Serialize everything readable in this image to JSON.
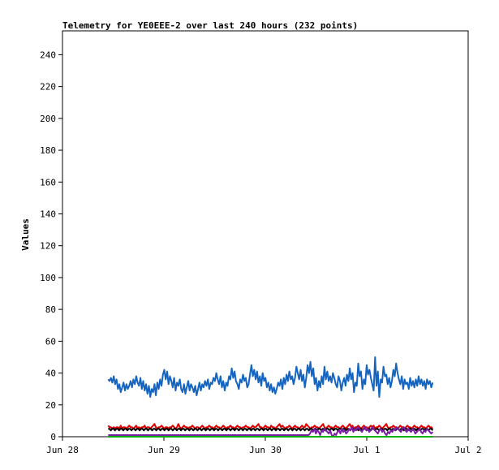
{
  "chart_data": {
    "type": "line",
    "title": "Telemetry for YE0EEE-2 over last 240 hours (232 points)",
    "xlabel": "",
    "ylabel": "Values",
    "ylim": [
      0,
      255
    ],
    "yticks": [
      0,
      20,
      40,
      60,
      80,
      100,
      120,
      140,
      160,
      180,
      200,
      220,
      240
    ],
    "xlim": [
      0,
      4
    ],
    "xticks": [
      {
        "x": 0,
        "label": "Jun 28"
      },
      {
        "x": 1,
        "label": "Jun 29"
      },
      {
        "x": 2,
        "label": "Jun 30"
      },
      {
        "x": 3,
        "label": "Jul 1"
      },
      {
        "x": 4,
        "label": "Jul 2"
      }
    ],
    "x_start": 0.45,
    "x_end": 3.65,
    "grid": false,
    "legend": "none",
    "series": [
      {
        "color": "#1565c0",
        "values": [
          36,
          35,
          37,
          34,
          38,
          33,
          36,
          30,
          33,
          28,
          31,
          34,
          29,
          33,
          30,
          32,
          35,
          31,
          36,
          33,
          38,
          34,
          32,
          37,
          30,
          35,
          29,
          33,
          27,
          32,
          25,
          30,
          28,
          33,
          26,
          34,
          30,
          36,
          32,
          39,
          42,
          36,
          41,
          33,
          38,
          35,
          31,
          37,
          29,
          34,
          32,
          36,
          30,
          28,
          33,
          27,
          31,
          35,
          29,
          33,
          31,
          28,
          32,
          26,
          30,
          34,
          29,
          33,
          31,
          35,
          32,
          36,
          30,
          34,
          33,
          37,
          35,
          40,
          36,
          33,
          38,
          31,
          35,
          29,
          34,
          32,
          38,
          36,
          43,
          37,
          41,
          35,
          33,
          30,
          36,
          34,
          39,
          35,
          37,
          31,
          33,
          39,
          45,
          38,
          42,
          36,
          41,
          34,
          38,
          32,
          40,
          35,
          37,
          31,
          34,
          29,
          33,
          28,
          31,
          27,
          30,
          34,
          32,
          36,
          30,
          37,
          33,
          39,
          35,
          41,
          36,
          38,
          33,
          37,
          44,
          40,
          36,
          42,
          35,
          39,
          31,
          37,
          45,
          40,
          47,
          38,
          43,
          33,
          37,
          29,
          35,
          31,
          38,
          33,
          44,
          36,
          41,
          35,
          38,
          34,
          40,
          37,
          33,
          31,
          38,
          35,
          29,
          34,
          37,
          32,
          39,
          35,
          43,
          36,
          40,
          28,
          34,
          32,
          46,
          38,
          41,
          30,
          36,
          33,
          45,
          39,
          42,
          37,
          33,
          29,
          50,
          32,
          41,
          25,
          36,
          34,
          44,
          38,
          39,
          33,
          37,
          31,
          35,
          42,
          38,
          46,
          40,
          36,
          33,
          38,
          30,
          36,
          33,
          34,
          30,
          37,
          32,
          35,
          31,
          36,
          32,
          38,
          33,
          36,
          32,
          35,
          30,
          36,
          33,
          35,
          31,
          34
        ]
      },
      {
        "color": "#e00000",
        "values": [
          7,
          6,
          6,
          5,
          6,
          5,
          6,
          6,
          5,
          7,
          5,
          6,
          6,
          5,
          6,
          7,
          6,
          6,
          5,
          6,
          7,
          5,
          6,
          5,
          6,
          6,
          7,
          5,
          6,
          6,
          5,
          6,
          7,
          8,
          6,
          5,
          6,
          6,
          7,
          6,
          5,
          6,
          6,
          5,
          6,
          6,
          7,
          6,
          5,
          6,
          8,
          6,
          5,
          6,
          7,
          6,
          6,
          5,
          6,
          6,
          7,
          6,
          5,
          6,
          6,
          5,
          6,
          7,
          6,
          5,
          6,
          6,
          7,
          6,
          6,
          5,
          6,
          7,
          6,
          6,
          5,
          6,
          7,
          6,
          5,
          6,
          6,
          7,
          6,
          6,
          5,
          6,
          7,
          6,
          6,
          5,
          6,
          6,
          7,
          6,
          6,
          5,
          6,
          7,
          6,
          6,
          7,
          8,
          6,
          6,
          5,
          6,
          7,
          6,
          6,
          5,
          7,
          6,
          6,
          5,
          6,
          7,
          8,
          6,
          7,
          6,
          5,
          6,
          6,
          7,
          6,
          5,
          6,
          7,
          6,
          6,
          5,
          6,
          7,
          6,
          6,
          8,
          7,
          6,
          5,
          6,
          6,
          7,
          6,
          6,
          5,
          6,
          7,
          8,
          6,
          5,
          6,
          7,
          6,
          6,
          5,
          6,
          7,
          6,
          6,
          5,
          6,
          7,
          6,
          5,
          6,
          7,
          8,
          6,
          7,
          5,
          6,
          6,
          7,
          6,
          5,
          6,
          7,
          6,
          6,
          5,
          6,
          7,
          6,
          7,
          5,
          6,
          6,
          7,
          6,
          5,
          6,
          7,
          8,
          6,
          5,
          6,
          6,
          7,
          6,
          6,
          5,
          6,
          7,
          6,
          6,
          5,
          6,
          7,
          6,
          6,
          5,
          6,
          7,
          6,
          6,
          5,
          6,
          7,
          6,
          6,
          5,
          6,
          7,
          6,
          6,
          5
        ]
      },
      {
        "color": "#000000",
        "values": [
          5,
          5,
          4,
          5,
          5,
          4,
          5,
          5,
          4,
          5,
          5,
          4,
          5,
          5,
          4,
          5,
          5,
          4,
          5,
          5,
          4,
          5,
          5,
          4,
          5,
          5,
          4,
          5,
          5,
          4,
          5,
          5,
          4,
          5,
          5,
          4,
          5,
          5,
          4,
          5,
          5,
          4,
          5,
          5,
          4,
          5,
          5,
          4,
          5,
          5,
          4,
          5,
          5,
          4,
          5,
          5,
          4,
          5,
          5,
          4,
          5,
          5,
          4,
          5,
          5,
          4,
          5,
          5,
          4,
          5,
          5,
          4,
          5,
          5,
          4,
          5,
          5,
          4,
          5,
          5,
          4,
          5,
          5,
          4,
          5,
          5,
          4,
          5,
          5,
          4,
          5,
          5,
          4,
          5,
          5,
          4,
          5,
          5,
          4,
          5,
          5,
          4,
          5,
          5,
          4,
          5,
          5,
          4,
          5,
          5,
          4,
          5,
          5,
          4,
          5,
          5,
          4,
          5,
          5,
          4,
          5,
          5,
          4,
          5,
          5,
          4,
          5,
          5,
          4,
          5,
          5,
          4,
          5,
          5,
          4,
          5,
          5,
          4,
          5,
          5,
          4,
          5,
          5,
          4,
          5,
          5,
          4,
          5,
          5,
          4,
          5,
          5,
          4,
          5,
          5,
          4,
          5,
          5,
          4,
          5,
          5,
          4,
          5,
          5,
          4,
          5,
          5,
          4,
          5,
          5,
          4,
          5,
          5,
          4,
          5,
          5,
          4,
          5,
          5,
          4,
          5,
          5,
          4,
          5,
          5,
          4,
          5,
          5,
          4,
          5,
          5,
          4,
          5,
          5,
          4,
          5,
          5,
          4,
          5,
          5,
          4,
          5,
          5,
          4,
          5,
          5,
          4,
          5,
          5,
          4,
          5,
          5,
          4,
          5,
          5,
          4,
          5,
          5,
          4,
          5,
          5,
          4,
          5,
          5,
          4,
          5,
          5,
          4,
          5,
          5,
          4,
          5,
          5,
          4,
          5,
          5,
          4
        ]
      },
      {
        "color": "#7b1fa2",
        "values": [
          1,
          1,
          1,
          1,
          1,
          1,
          1,
          1,
          1,
          1,
          1,
          1,
          1,
          1,
          1,
          1,
          1,
          1,
          1,
          1,
          1,
          1,
          1,
          1,
          1,
          1,
          1,
          1,
          1,
          1,
          1,
          1,
          1,
          1,
          1,
          1,
          1,
          1,
          1,
          1,
          1,
          1,
          1,
          1,
          1,
          1,
          1,
          1,
          1,
          1,
          1,
          1,
          1,
          1,
          1,
          1,
          1,
          1,
          1,
          1,
          1,
          1,
          1,
          1,
          1,
          1,
          1,
          1,
          1,
          1,
          1,
          1,
          1,
          1,
          1,
          1,
          1,
          1,
          1,
          1,
          1,
          1,
          1,
          1,
          1,
          1,
          1,
          1,
          1,
          1,
          1,
          1,
          1,
          1,
          1,
          1,
          1,
          1,
          1,
          1,
          1,
          1,
          1,
          1,
          1,
          1,
          1,
          1,
          1,
          1,
          1,
          1,
          1,
          1,
          1,
          1,
          1,
          1,
          1,
          1,
          1,
          1,
          1,
          1,
          1,
          1,
          1,
          1,
          1,
          1,
          1,
          1,
          1,
          1,
          1,
          1,
          1,
          1,
          1,
          1,
          2,
          4,
          3,
          5,
          2,
          4,
          3,
          1,
          4,
          3,
          5,
          4,
          3,
          2,
          4,
          1,
          0,
          2,
          1,
          3,
          4,
          2,
          5,
          3,
          4,
          2,
          3,
          5,
          4,
          6,
          3,
          5,
          4,
          6,
          5,
          4,
          3,
          5,
          6,
          4,
          5,
          3,
          4,
          6,
          5,
          4,
          3,
          2,
          4,
          5,
          3,
          4,
          2,
          1,
          3,
          2,
          4,
          3,
          5,
          4,
          6,
          5,
          4,
          3,
          5,
          6,
          4,
          3,
          5,
          4,
          3,
          5,
          4,
          2,
          3,
          4,
          5,
          3,
          2,
          4,
          3,
          5,
          4,
          3,
          2,
          3
        ]
      },
      {
        "color": "#00b000",
        "values": [
          0,
          0,
          0,
          0,
          0,
          0,
          0,
          0,
          0,
          0,
          0,
          0,
          0,
          0,
          0,
          0,
          0,
          0,
          0,
          0,
          0,
          0,
          0,
          0,
          0,
          0,
          0,
          0,
          0,
          0,
          0,
          0,
          0,
          0,
          0,
          0,
          0,
          0,
          0,
          0,
          0,
          0,
          0,
          0,
          0,
          0,
          0,
          0,
          0,
          0,
          0,
          0,
          0,
          0,
          0,
          0,
          0,
          0,
          0,
          0,
          0,
          0,
          0,
          0,
          0,
          0,
          0,
          0,
          0,
          0,
          0,
          0,
          0,
          0,
          0,
          0,
          0,
          0,
          0,
          0,
          0,
          0,
          0,
          0,
          0,
          0,
          0,
          0,
          0,
          0,
          0,
          0,
          0,
          0,
          0,
          0,
          0,
          0,
          0,
          0,
          0,
          0,
          0,
          0,
          0,
          0,
          0,
          0,
          0,
          0,
          0,
          0,
          0,
          0,
          0,
          0,
          0,
          0,
          0,
          0,
          0,
          0,
          0,
          0,
          0,
          0,
          0,
          0,
          0,
          0,
          0,
          0,
          0,
          0,
          0,
          0,
          0,
          0,
          0,
          0,
          0,
          0,
          0,
          0,
          0,
          0,
          0,
          0,
          0,
          0,
          0,
          0,
          0,
          0,
          0,
          0,
          0,
          0,
          0,
          0,
          0,
          0,
          0,
          0,
          0,
          0,
          0,
          0,
          0,
          0,
          0,
          0,
          0,
          0,
          0,
          0,
          0,
          0,
          0,
          0,
          0,
          0,
          0,
          0,
          0,
          0,
          0,
          0,
          0,
          0,
          0,
          0,
          0,
          0,
          0,
          0,
          0,
          0,
          0,
          0,
          0,
          0,
          0,
          0,
          0,
          0,
          0,
          0,
          0,
          0,
          0,
          0,
          0,
          0,
          0,
          0,
          0,
          0,
          0,
          0,
          0,
          0,
          0,
          0,
          0,
          0,
          0,
          0,
          0,
          0,
          0,
          0
        ]
      }
    ]
  }
}
